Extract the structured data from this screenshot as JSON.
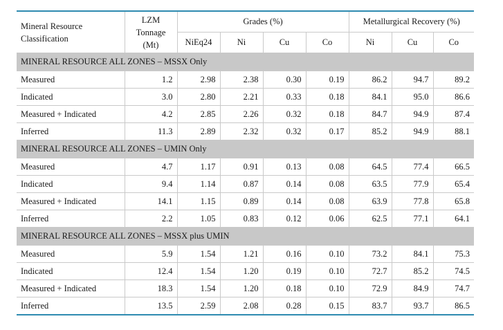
{
  "header": {
    "classification": "Mineral Resource Classification",
    "tonnage": "LZM Tonnage (Mt)",
    "grades_group": "Grades (%)",
    "recovery_group": "Metallurgical Recovery (%)",
    "grade_cols": [
      "NiEq24",
      "Ni",
      "Cu",
      "Co"
    ],
    "recovery_cols": [
      "Ni",
      "Cu",
      "Co"
    ]
  },
  "sections": [
    {
      "title": "MINERAL RESOURCE ALL ZONES – MSSX Only",
      "rows": [
        [
          "Measured",
          "1.2",
          "2.98",
          "2.38",
          "0.30",
          "0.19",
          "86.2",
          "94.7",
          "89.2"
        ],
        [
          "Indicated",
          "3.0",
          "2.80",
          "2.21",
          "0.33",
          "0.18",
          "84.1",
          "95.0",
          "86.6"
        ],
        [
          "Measured + Indicated",
          "4.2",
          "2.85",
          "2.26",
          "0.32",
          "0.18",
          "84.7",
          "94.9",
          "87.4"
        ],
        [
          "Inferred",
          "11.3",
          "2.89",
          "2.32",
          "0.32",
          "0.17",
          "85.2",
          "94.9",
          "88.1"
        ]
      ]
    },
    {
      "title": "MINERAL RESOURCE ALL ZONES – UMIN Only",
      "rows": [
        [
          "Measured",
          "4.7",
          "1.17",
          "0.91",
          "0.13",
          "0.08",
          "64.5",
          "77.4",
          "66.5"
        ],
        [
          "Indicated",
          "9.4",
          "1.14",
          "0.87",
          "0.14",
          "0.08",
          "63.5",
          "77.9",
          "65.4"
        ],
        [
          "Measured + Indicated",
          "14.1",
          "1.15",
          "0.89",
          "0.14",
          "0.08",
          "63.9",
          "77.8",
          "65.8"
        ],
        [
          "Inferred",
          "2.2",
          "1.05",
          "0.83",
          "0.12",
          "0.06",
          "62.5",
          "77.1",
          "64.1"
        ]
      ]
    },
    {
      "title": "MINERAL RESOURCE ALL ZONES – MSSX plus UMIN",
      "rows": [
        [
          "Measured",
          "5.9",
          "1.54",
          "1.21",
          "0.16",
          "0.10",
          "73.2",
          "84.1",
          "75.3"
        ],
        [
          "Indicated",
          "12.4",
          "1.54",
          "1.20",
          "0.19",
          "0.10",
          "72.7",
          "85.2",
          "74.5"
        ],
        [
          "Measured + Indicated",
          "18.3",
          "1.54",
          "1.20",
          "0.18",
          "0.10",
          "72.9",
          "84.9",
          "74.7"
        ],
        [
          "Inferred",
          "13.5",
          "2.59",
          "2.08",
          "0.28",
          "0.15",
          "83.7",
          "93.7",
          "86.5"
        ]
      ]
    }
  ]
}
